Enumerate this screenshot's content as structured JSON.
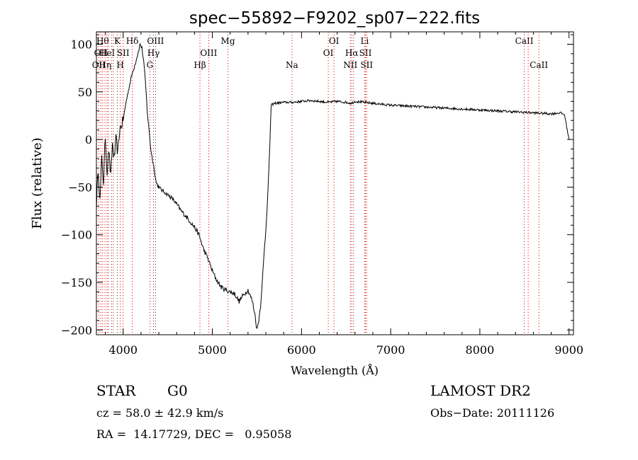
{
  "chart_data": {
    "type": "line",
    "title": "spec−55892−F9202_sp07−222.fits",
    "xlabel": "Wavelength (Å)",
    "ylabel": "Flux (relative)",
    "xlim": [
      3700,
      9050
    ],
    "ylim": [
      -205,
      113
    ],
    "xticks": [
      4000,
      5000,
      6000,
      7000,
      8000,
      9000
    ],
    "yticks": [
      100,
      50,
      0,
      -50,
      -100,
      -150,
      -200
    ],
    "xtick_labels": [
      "4000",
      "5000",
      "6000",
      "7000",
      "8000",
      "9000"
    ],
    "ytick_labels": [
      "100",
      "50",
      "0",
      "−50",
      "−100",
      "−150",
      "−200"
    ],
    "series": [
      {
        "name": "flux",
        "color": "#000000",
        "x": [
          3700,
          3720,
          3740,
          3760,
          3780,
          3800,
          3820,
          3840,
          3860,
          3880,
          3900,
          3920,
          3940,
          3960,
          3980,
          4000,
          4030,
          4060,
          4090,
          4110,
          4130,
          4150,
          4170,
          4190,
          4210,
          4230,
          4250,
          4270,
          4290,
          4310,
          4330,
          4350,
          4370,
          4400,
          4430,
          4460,
          4500,
          4550,
          4600,
          4650,
          4700,
          4750,
          4800,
          4850,
          4900,
          4950,
          5000,
          5050,
          5100,
          5150,
          5200,
          5250,
          5300,
          5350,
          5400,
          5450,
          5480,
          5500,
          5520,
          5540,
          5560,
          5580,
          5600,
          5620,
          5640,
          5650,
          5660,
          5680,
          5700,
          5800,
          5900,
          6000,
          6100,
          6200,
          6300,
          6400,
          6500,
          6560,
          6600,
          6700,
          6800,
          6900,
          7000,
          7200,
          7400,
          7600,
          7800,
          8000,
          8200,
          8400,
          8600,
          8800,
          8900,
          8950,
          8980,
          9000
        ],
        "y": [
          -70,
          -30,
          -65,
          -20,
          -45,
          5,
          -35,
          -10,
          -40,
          -5,
          -20,
          0,
          -15,
          10,
          15,
          20,
          38,
          52,
          65,
          72,
          78,
          85,
          92,
          100,
          96,
          82,
          60,
          30,
          10,
          -10,
          -22,
          -32,
          -45,
          -50,
          -53,
          -55,
          -58,
          -62,
          -68,
          -75,
          -80,
          -86,
          -92,
          -100,
          -115,
          -125,
          -138,
          -148,
          -155,
          -158,
          -160,
          -162,
          -170,
          -163,
          -158,
          -170,
          -185,
          -200,
          -190,
          -175,
          -150,
          -120,
          -95,
          -60,
          -20,
          10,
          36,
          37,
          38,
          39,
          39,
          40,
          41,
          40,
          39,
          40,
          39,
          38,
          40,
          39,
          38,
          37,
          36,
          35,
          34,
          33,
          32,
          31,
          30,
          29,
          28,
          27,
          28,
          26,
          10,
          0
        ]
      }
    ],
    "line_markers": {
      "color": "#cc0000",
      "lines": [
        {
          "wl": 3727,
          "labels": [
            "OII"
          ],
          "row": [
            3
          ]
        },
        {
          "wl": 3750,
          "labels": [
            "OII"
          ],
          "row": [
            2
          ]
        },
        {
          "wl": 3770,
          "labels": [
            "Hθ"
          ],
          "row": [
            1
          ]
        },
        {
          "wl": 3797,
          "labels": [
            "Hη"
          ],
          "row": [
            3
          ]
        },
        {
          "wl": 3820,
          "labels": [
            "HeI"
          ],
          "row": [
            2
          ]
        },
        {
          "wl": 3835,
          "labels": [],
          "row": []
        },
        {
          "wl": 3870,
          "labels": [],
          "row": []
        },
        {
          "wl": 3889,
          "labels": [],
          "row": []
        },
        {
          "wl": 3934,
          "labels": [
            "K"
          ],
          "row": [
            1
          ]
        },
        {
          "wl": 3968,
          "labels": [
            "H"
          ],
          "row": [
            3
          ]
        },
        {
          "wl": 4000,
          "labels": [
            "SII"
          ],
          "row": [
            2
          ]
        },
        {
          "wl": 4102,
          "labels": [
            "Hδ"
          ],
          "row": [
            1
          ]
        },
        {
          "wl": 4300,
          "labels": [
            "G"
          ],
          "row": [
            3
          ]
        },
        {
          "wl": 4340,
          "labels": [
            "Hγ"
          ],
          "row": [
            2
          ]
        },
        {
          "wl": 4363,
          "labels": [
            "OIII"
          ],
          "row": [
            1
          ]
        },
        {
          "wl": 4861,
          "labels": [
            "Hβ"
          ],
          "row": [
            3
          ]
        },
        {
          "wl": 4959,
          "labels": [
            "OIII"
          ],
          "row": [
            2
          ]
        },
        {
          "wl": 5175,
          "labels": [
            "Mg"
          ],
          "row": [
            1
          ]
        },
        {
          "wl": 5893,
          "labels": [
            "Na"
          ],
          "row": [
            3
          ]
        },
        {
          "wl": 6300,
          "labels": [
            "OI"
          ],
          "row": [
            2
          ]
        },
        {
          "wl": 6364,
          "labels": [
            "OI"
          ],
          "row": [
            1
          ]
        },
        {
          "wl": 6548,
          "labels": [
            "NII"
          ],
          "row": [
            3
          ]
        },
        {
          "wl": 6563,
          "labels": [
            "Hα"
          ],
          "row": [
            2
          ]
        },
        {
          "wl": 6584,
          "labels": [],
          "row": []
        },
        {
          "wl": 6708,
          "labels": [
            "Li"
          ],
          "row": [
            1
          ]
        },
        {
          "wl": 6717,
          "labels": [
            "SII"
          ],
          "row": [
            2
          ]
        },
        {
          "wl": 6731,
          "labels": [
            "SII"
          ],
          "row": [
            3
          ]
        },
        {
          "wl": 8498,
          "labels": [
            "CaII"
          ],
          "row": [
            1
          ]
        },
        {
          "wl": 8542,
          "labels": [],
          "row": []
        },
        {
          "wl": 8662,
          "labels": [
            "CaII"
          ],
          "row": [
            3
          ]
        }
      ]
    }
  },
  "info": {
    "object_class": "STAR",
    "subclass": "G0",
    "survey": "LAMOST DR2",
    "cz": "cz = 58.0 ± 42.9 km/s",
    "obs_date": "Obs−Date: 20111126",
    "coords": "RA =  14.17729, DEC =   0.95058"
  }
}
